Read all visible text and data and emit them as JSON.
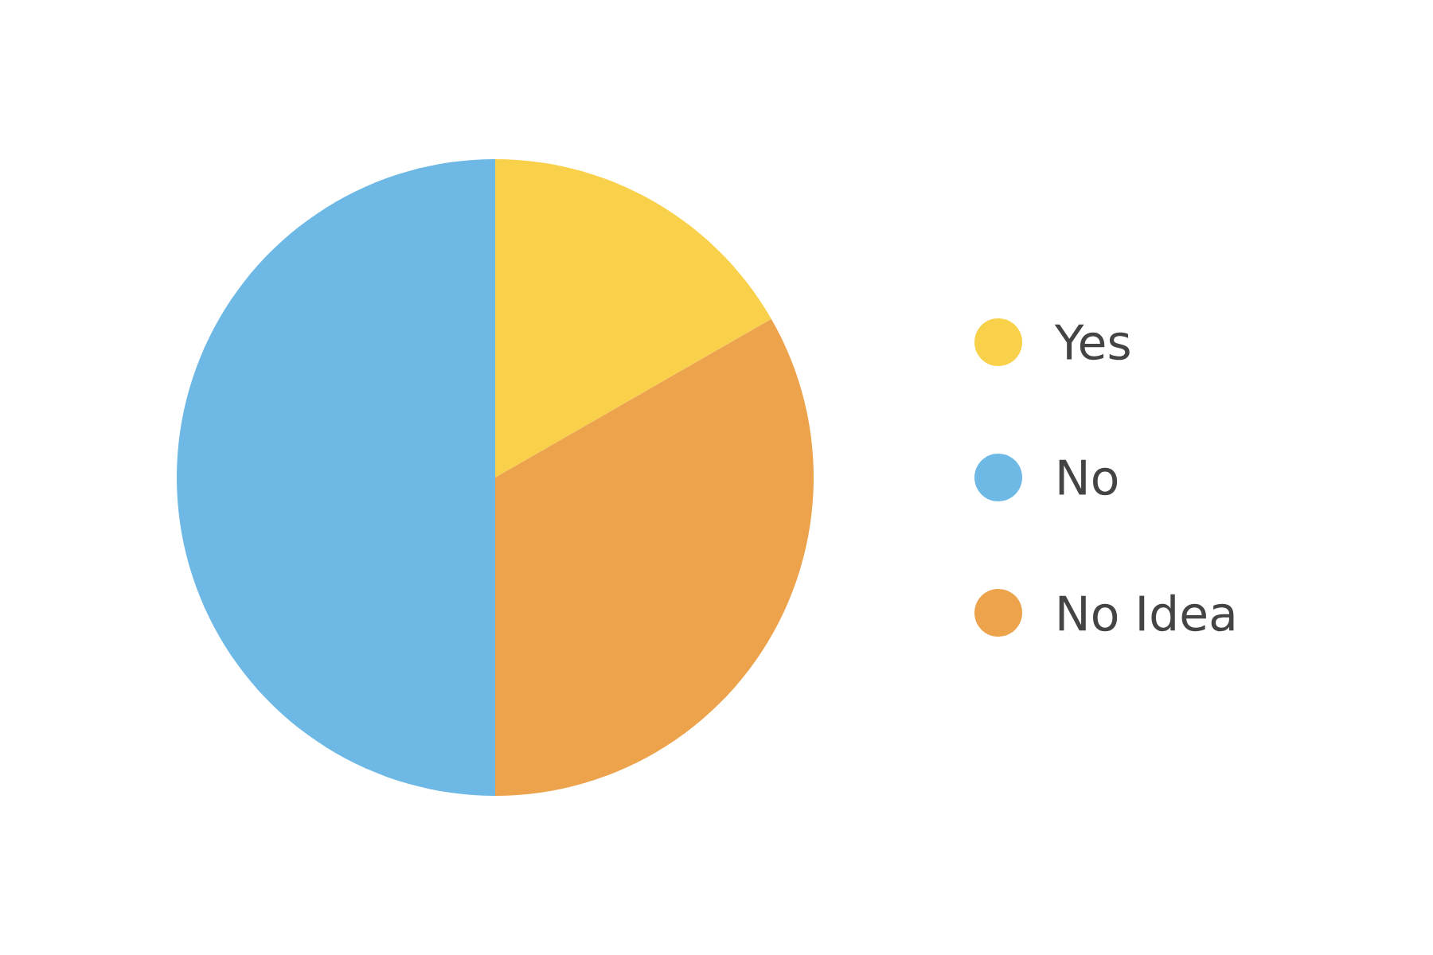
{
  "chart_data": {
    "type": "pie",
    "categories": [
      "Yes",
      "No",
      "No Idea"
    ],
    "values": [
      16.7,
      50,
      33.3
    ],
    "colors": [
      "#f8d04a",
      "#6db8e5",
      "#eca34b"
    ],
    "legend": "right"
  }
}
